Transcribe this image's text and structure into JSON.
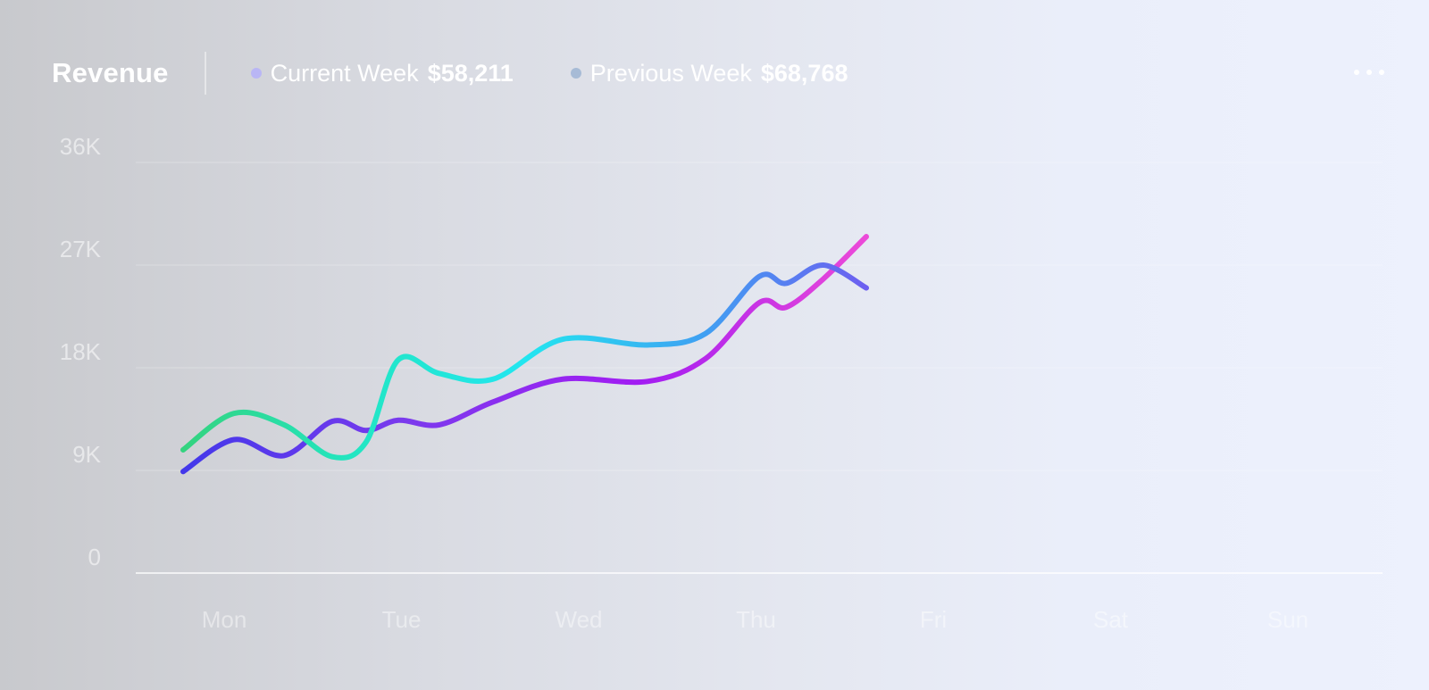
{
  "header": {
    "title": "Revenue",
    "menu_icon": "more-horizontal-icon"
  },
  "legend": [
    {
      "label": "Current Week",
      "value": "$58,211",
      "color": "#b9b6f5"
    },
    {
      "label": "Previous Week",
      "value": "$68,768",
      "color": "#a7bbd6"
    }
  ],
  "chart_data": {
    "type": "line",
    "x": [
      "Mon",
      "Tue",
      "Wed",
      "Thu",
      "Fri",
      "Sat",
      "Sun"
    ],
    "y_ticks": [
      "0",
      "9K",
      "18K",
      "27K",
      "36K"
    ],
    "ylim": [
      0,
      36000
    ],
    "grid": true,
    "series": [
      {
        "name": "Current Week",
        "gradient": [
          "#4338ea",
          "#7c3aed",
          "#a21cf2",
          "#ec4ad8"
        ],
        "points": [
          [
            "Mon",
            8900
          ],
          [
            "Mon",
            11700
          ],
          [
            "Mon",
            10300
          ],
          [
            "Tue",
            13300
          ],
          [
            "Tue",
            12500
          ],
          [
            "Tue",
            13400
          ],
          [
            "Tue",
            13000
          ],
          [
            "Wed",
            15000
          ],
          [
            "Wed",
            17000
          ],
          [
            "Wed",
            16800
          ],
          [
            "Thu",
            18800
          ],
          [
            "Thu",
            23700
          ],
          [
            "Thu",
            23300
          ],
          [
            "Thu",
            25800
          ],
          [
            "Fri",
            29500
          ]
        ]
      },
      {
        "name": "Previous Week",
        "gradient": [
          "#34d37f",
          "#22e6c2",
          "#22e6f0",
          "#3ea3f2",
          "#6d5ff0"
        ],
        "points": [
          [
            "Mon",
            10800
          ],
          [
            "Mon",
            14000
          ],
          [
            "Mon",
            13000
          ],
          [
            "Tue",
            10200
          ],
          [
            "Tue",
            11500
          ],
          [
            "Tue",
            18700
          ],
          [
            "Tue",
            17500
          ],
          [
            "Wed",
            17000
          ],
          [
            "Wed",
            20500
          ],
          [
            "Wed",
            20000
          ],
          [
            "Thu",
            21000
          ],
          [
            "Thu",
            26000
          ],
          [
            "Thu",
            25400
          ],
          [
            "Thu",
            27000
          ],
          [
            "Fri",
            25000
          ]
        ]
      }
    ]
  }
}
